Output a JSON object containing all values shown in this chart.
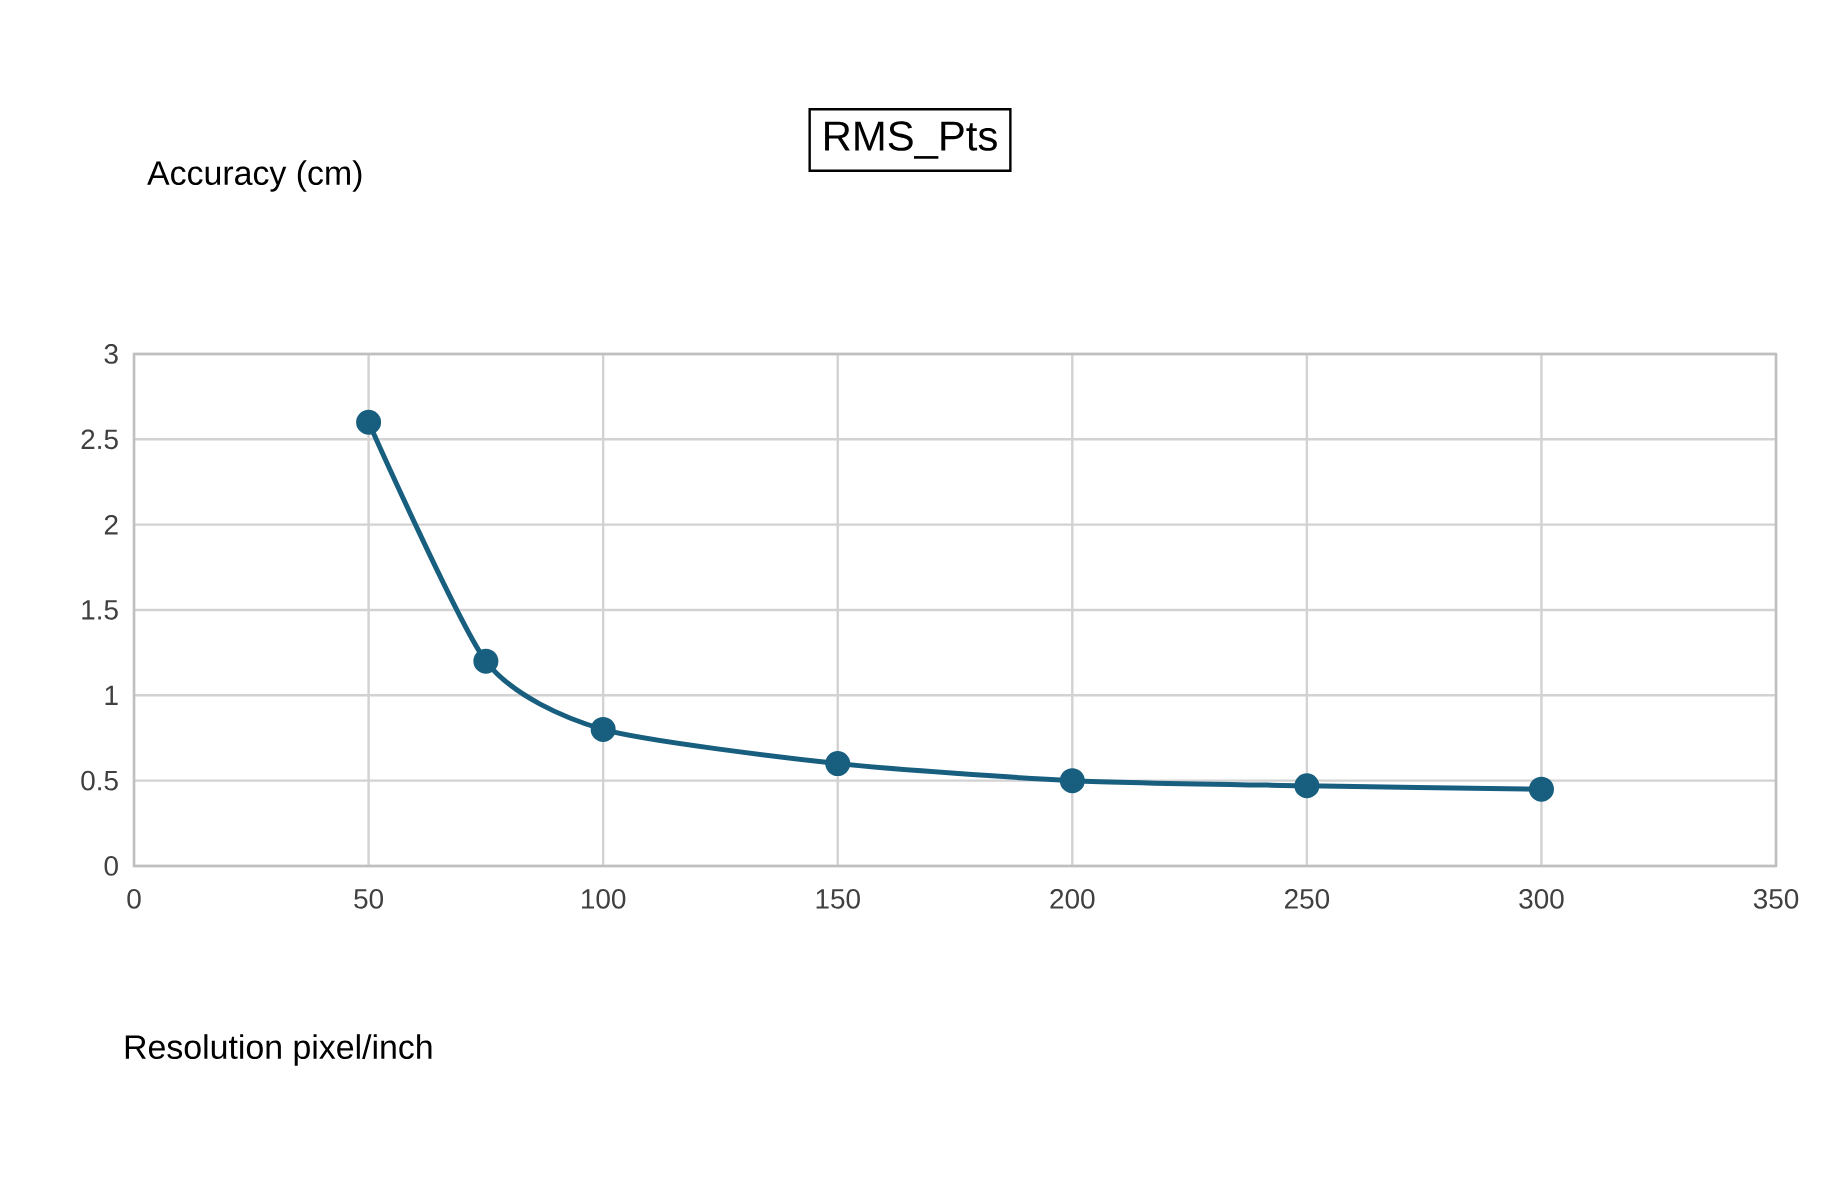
{
  "chart_data": {
    "type": "line",
    "title": "RMS_Pts",
    "xlabel": "Resolution pixel/inch",
    "ylabel": "Accuracy (cm)",
    "x": [
      50,
      75,
      100,
      150,
      200,
      250,
      300
    ],
    "series": [
      {
        "color": "#175e7f",
        "values": [
          2.6,
          1.2,
          0.8,
          0.6,
          0.5,
          0.47,
          0.45
        ]
      }
    ],
    "xlim": [
      0,
      350
    ],
    "xticks": [
      0,
      50,
      100,
      150,
      200,
      250,
      300,
      350
    ],
    "ylim": [
      0,
      3
    ],
    "yticks": [
      0,
      0.5,
      1,
      1.5,
      2,
      2.5,
      3
    ],
    "grid": true,
    "marker": "circle"
  }
}
